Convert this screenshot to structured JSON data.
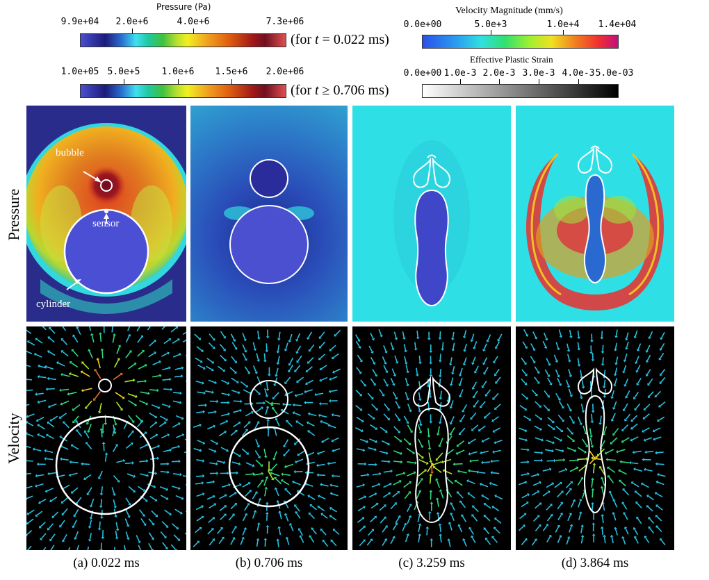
{
  "colorbars": {
    "pressure_early": {
      "title": "Pressure (Pa)",
      "ticks": [
        "9.9e+04",
        "2.0e+6",
        "4.0e+6",
        "7.3e+06"
      ],
      "note_prefix": "(for ",
      "note_var": "t",
      "note_suffix": " = 0.022 ms)"
    },
    "pressure_late": {
      "ticks": [
        "1.0e+05",
        "5.0e+5",
        "1.0e+6",
        "1.5e+6",
        "2.0e+06"
      ],
      "note_prefix": "(for ",
      "note_var": "t",
      "note_suffix": " ≥ 0.706 ms)"
    },
    "velocity": {
      "title": "Velocity Magnitude (mm/s)",
      "ticks": [
        "0.0e+00",
        "5.0e+3",
        "1.0e+4",
        "1.4e+04"
      ]
    },
    "plastic_strain": {
      "title": "Effective Plastic Strain",
      "ticks": [
        "0.0e+00",
        "1.0e-3",
        "2.0e-3",
        "3.0e-3",
        "4.0e-3",
        "5.0e-03"
      ]
    }
  },
  "rows": {
    "pressure": "Pressure",
    "velocity": "Velocity"
  },
  "annotations": {
    "bubble": "bubble",
    "sensor": "sensor",
    "cylinder": "cylinder"
  },
  "captions": [
    "(a) 0.022 ms",
    "(b) 0.706 ms",
    "(c) 3.259 ms",
    "(d) 3.864 ms"
  ],
  "colors": {
    "pressure_low": "#3d46c8",
    "cyan_field": "#2ee0e6",
    "velocity_bg": "#000000",
    "outline": "#ffffff"
  }
}
